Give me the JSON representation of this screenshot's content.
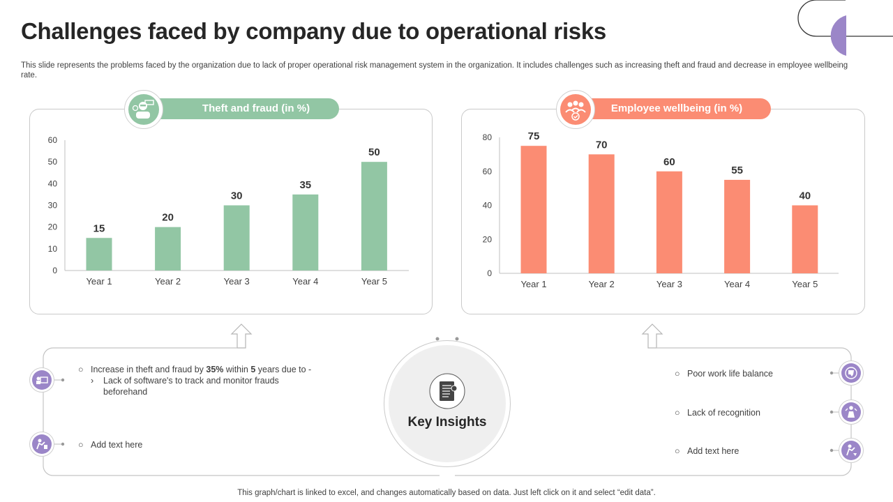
{
  "title": "Challenges faced by company due to operational risks",
  "subtitle": "This slide represents the problems faced by the organization due to lack of proper operational risk management system in the organization. It includes challenges such as increasing theft and fraud and decrease in employee wellbeing rate.",
  "colors": {
    "green": "#92c6a4",
    "salmon": "#fb8c73",
    "purple": "#9b86c8"
  },
  "chart_data": [
    {
      "type": "bar",
      "title": "Theft and fraud (in %)",
      "categories": [
        "Year 1",
        "Year 2",
        "Year 3",
        "Year 4",
        "Year 5"
      ],
      "values": [
        15,
        20,
        30,
        35,
        50
      ],
      "ylim": [
        0,
        60
      ],
      "yticks": [
        0,
        10,
        20,
        30,
        40,
        50,
        60
      ],
      "grid": false,
      "color": "#92c6a4"
    },
    {
      "type": "bar",
      "title": "Employee wellbeing (in %)",
      "categories": [
        "Year 1",
        "Year 2",
        "Year 3",
        "Year 4",
        "Year 5"
      ],
      "values": [
        75,
        70,
        60,
        55,
        40
      ],
      "ylim": [
        0,
        80
      ],
      "yticks": [
        0,
        20,
        40,
        60,
        80
      ],
      "grid": false,
      "color": "#fb8c73"
    }
  ],
  "key_insights": {
    "label": "Key Insights",
    "left": {
      "item1_prefix": "Increase in theft and fraud  by ",
      "item1_bold1": "35%",
      "item1_mid": " within ",
      "item1_bold2": "5",
      "item1_suffix": " years due to -",
      "item1_sub": "Lack of software's  to track and monitor frauds beforehand",
      "item2": "Add text here"
    },
    "right": {
      "item1": "Poor work life balance",
      "item2": "Lack of recognition",
      "item3": "Add text here"
    }
  },
  "footer": "This graph/chart is linked to excel,  and changes automatically based on data. Just left click on it and select “edit data”."
}
